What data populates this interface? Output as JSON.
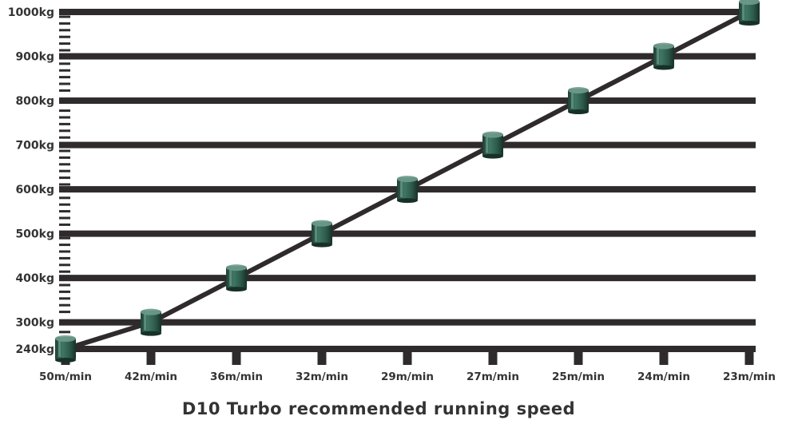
{
  "chart_data": {
    "type": "line",
    "title": "D10 Turbo recommended running speed",
    "xlabel": "",
    "ylabel": "",
    "categories": [
      "50m/min",
      "42m/min",
      "36m/min",
      "32m/min",
      "29m/min",
      "27m/min",
      "25m/min",
      "24m/min",
      "23m/min"
    ],
    "y_ticks": [
      240,
      300,
      400,
      500,
      600,
      700,
      800,
      900,
      1000
    ],
    "y_tick_labels": [
      "240kg",
      "300kg",
      "400kg",
      "500kg",
      "600kg",
      "700kg",
      "800kg",
      "900kg",
      "1000kg"
    ],
    "ylim": [
      240,
      1000
    ],
    "series": [
      {
        "values": [
          240,
          300,
          400,
          500,
          600,
          700,
          800,
          900,
          1000
        ]
      }
    ],
    "grid": true,
    "colors": {
      "line": "#2f2b2c",
      "grid": "#2f2b2c",
      "marker": "#2e5a4c",
      "marker_highlight": "#6f9c8c",
      "text": "#333333"
    }
  }
}
